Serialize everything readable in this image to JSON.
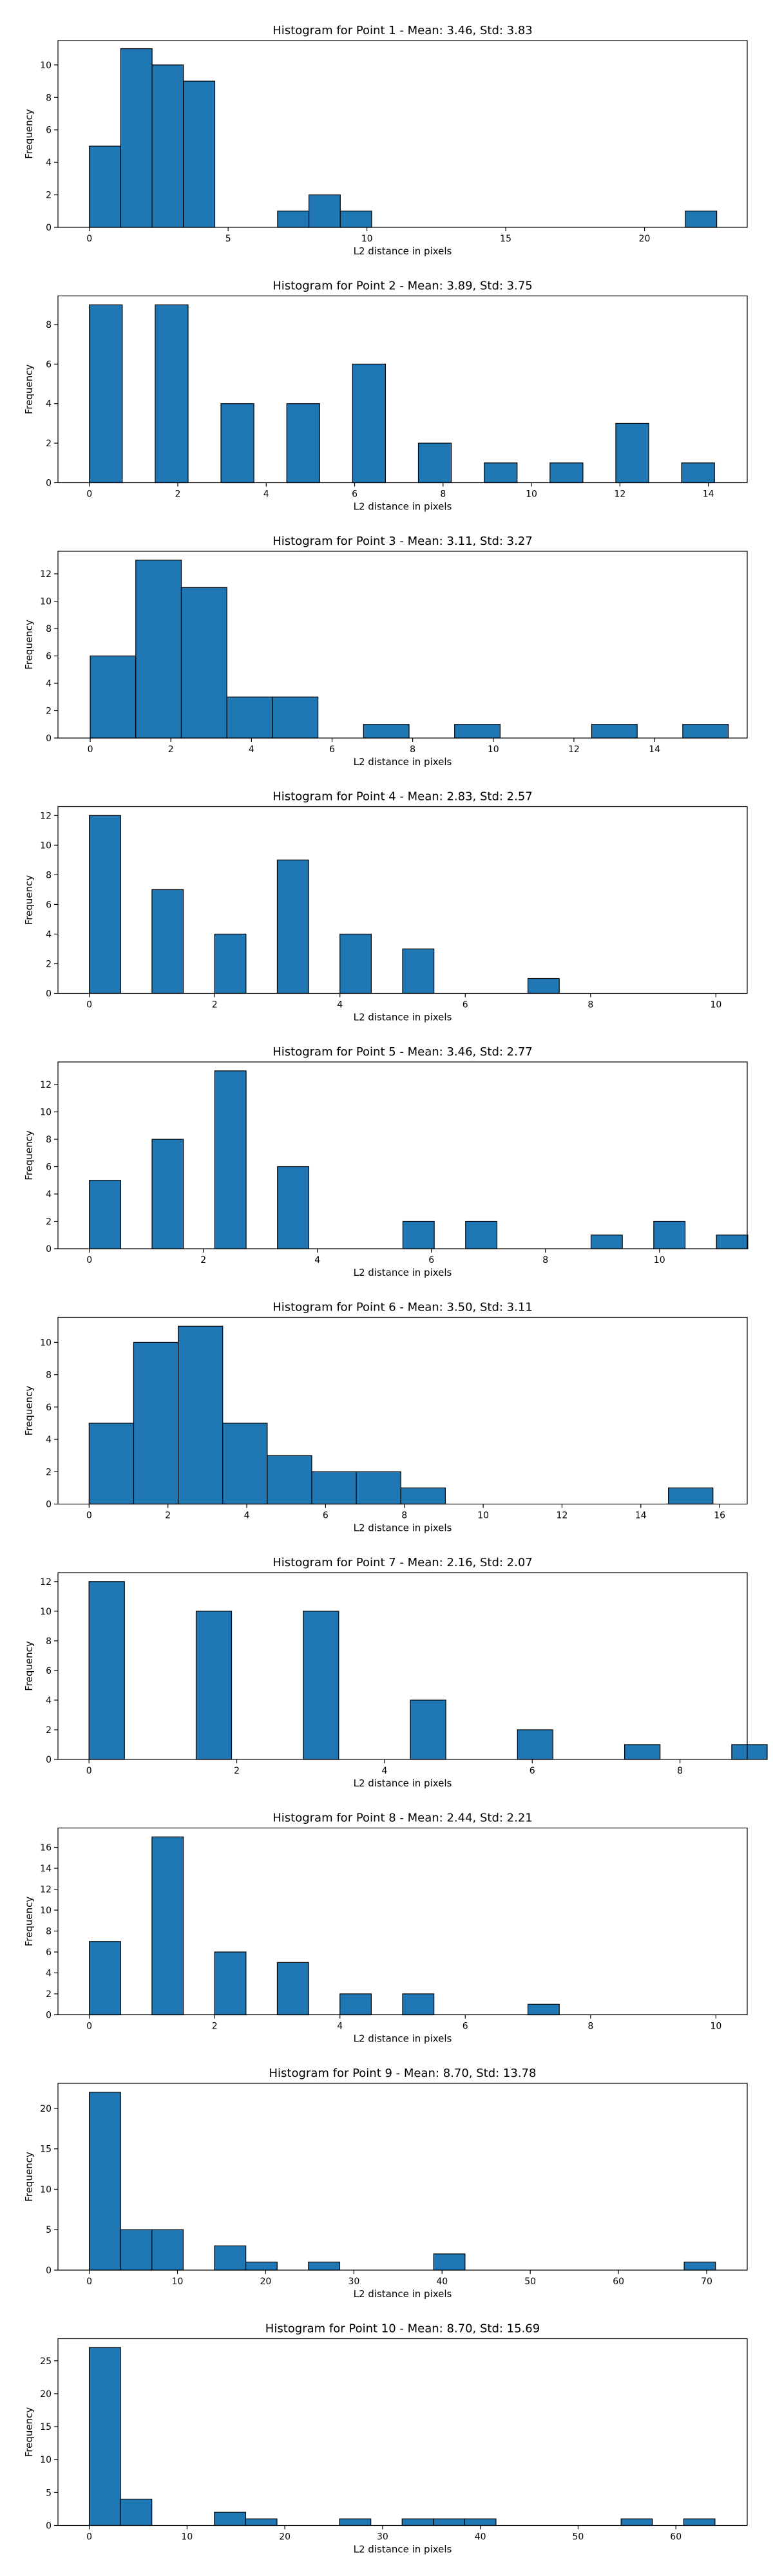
{
  "style": {
    "bar_color": "#1f77b4",
    "edge_color": "#000000",
    "background": "#ffffff"
  },
  "chart_data": [
    {
      "type": "bar",
      "title": "Histogram for Point 1 - Mean: 3.46, Std: 3.83",
      "xlabel": "L2 distance in pixels",
      "ylabel": "Frequency",
      "xlim": [
        -1.13,
        23.7
      ],
      "ylim": [
        0,
        11.5
      ],
      "xticks": [
        0,
        5,
        10,
        15,
        20
      ],
      "yticks": [
        0,
        2,
        4,
        6,
        8,
        10
      ],
      "bars": [
        {
          "x0": 0.0,
          "x1": 1.13,
          "count": 5
        },
        {
          "x0": 1.13,
          "x1": 2.26,
          "count": 11
        },
        {
          "x0": 2.26,
          "x1": 3.39,
          "count": 10
        },
        {
          "x0": 3.39,
          "x1": 4.52,
          "count": 9
        },
        {
          "x0": 6.78,
          "x1": 7.91,
          "count": 1
        },
        {
          "x0": 7.91,
          "x1": 9.04,
          "count": 2
        },
        {
          "x0": 9.04,
          "x1": 10.17,
          "count": 1
        },
        {
          "x0": 21.47,
          "x1": 22.6,
          "count": 1
        }
      ]
    },
    {
      "type": "bar",
      "title": "Histogram for Point 2 - Mean: 3.89, Std: 3.75",
      "xlabel": "L2 distance in pixels",
      "ylabel": "Frequency",
      "xlim": [
        -0.71,
        14.88
      ],
      "ylim": [
        0,
        9.45
      ],
      "xticks": [
        0,
        2,
        4,
        6,
        8,
        10,
        12,
        14
      ],
      "yticks": [
        0,
        2,
        4,
        6,
        8
      ],
      "bars": [
        {
          "x0": 0.0,
          "x1": 1.0,
          "count": 9
        },
        {
          "x0": 2.0,
          "x1": 1.0,
          "count": 9
        },
        {
          "x0": 2.0,
          "x1": 2.99,
          "count": 4
        }
      ]
    },
    {
      "type": "bar",
      "title": "Histogram for Point 3 - Mean: 3.11, Std: 3.27",
      "xlabel": "L2 distance in pixels",
      "ylabel": "Frequency",
      "xlim": [
        -0.8,
        16.3
      ],
      "ylim": [
        0,
        13.65
      ],
      "xticks": [
        0,
        2,
        4,
        6,
        8,
        10,
        12,
        14
      ],
      "yticks": [
        0,
        2,
        4,
        6,
        8,
        10,
        12
      ],
      "bars": [
        {
          "x0": 0.0,
          "x1": 1.13,
          "count": 6
        },
        {
          "x0": 1.13,
          "x1": 2.26,
          "count": 13
        },
        {
          "x0": 2.26,
          "x1": 3.39,
          "count": 11
        },
        {
          "x0": 3.39,
          "x1": 4.52,
          "count": 3
        },
        {
          "x0": 4.52,
          "x1": 5.65,
          "count": 3
        },
        {
          "x0": 6.78,
          "x1": 7.91,
          "count": 1
        },
        {
          "x0": 9.04,
          "x1": 10.17,
          "count": 1
        },
        {
          "x0": 12.44,
          "x1": 13.57,
          "count": 1
        },
        {
          "x0": 14.7,
          "x1": 15.83,
          "count": 1
        }
      ]
    },
    {
      "type": "bar",
      "title": "Histogram for Point 4 - Mean: 2.83, Std: 2.57",
      "xlabel": "L2 distance in pixels",
      "ylabel": "Frequency",
      "xlim": [
        -0.5,
        10.5
      ],
      "ylim": [
        0,
        12.6
      ],
      "xticks": [
        0,
        2,
        4,
        6,
        8,
        10
      ],
      "yticks": [
        0,
        2,
        4,
        6,
        8,
        10,
        12
      ],
      "bars": [
        {
          "x0": 0.0,
          "x1": 0.5,
          "count": 12
        },
        {
          "x0": 1.0,
          "x1": 1.5,
          "count": 7
        },
        {
          "x0": 2.0,
          "x1": 2.5,
          "count": 4
        },
        {
          "x0": 3.0,
          "x1": 3.5,
          "count": 9
        },
        {
          "x0": 4.0,
          "x1": 4.5,
          "count": 4
        },
        {
          "x0": 5.0,
          "x1": 5.5,
          "count": 3
        },
        {
          "x0": 7.0,
          "x1": 7.5,
          "count": 1
        }
      ]
    },
    {
      "type": "bar",
      "title": "Histogram for Point 5 - Mean: 3.46, Std: 2.77",
      "xlabel": "L2 distance in pixels",
      "ylabel": "Frequency",
      "xlim": [
        -0.55,
        11.54
      ],
      "ylim": [
        0,
        13.65
      ],
      "xticks": [
        0,
        2,
        4,
        6,
        8,
        10
      ],
      "yticks": [
        0,
        2,
        4,
        6,
        8,
        10,
        12
      ],
      "bars": [
        {
          "x0": 0.0,
          "x1": 0.55,
          "count": 5
        },
        {
          "x0": 1.1,
          "x1": 1.65,
          "count": 8
        },
        {
          "x0": 2.2,
          "x1": 2.75,
          "count": 13
        },
        {
          "x0": 3.3,
          "x1": 3.85,
          "count": 6
        },
        {
          "x0": 5.5,
          "x1": 6.05,
          "count": 2
        },
        {
          "x0": 6.6,
          "x1": 7.15,
          "count": 2
        },
        {
          "x0": 8.8,
          "x1": 9.35,
          "count": 1
        },
        {
          "x0": 9.9,
          "x1": 10.45,
          "count": 2
        },
        {
          "x0": 11.0,
          "x1": 11.55,
          "count": 1
        }
      ]
    },
    {
      "type": "bar",
      "title": "Histogram for Point 6 - Mean: 3.50, Std: 3.11",
      "xlabel": "L2 distance in pixels",
      "ylabel": "Frequency",
      "xlim": [
        -0.79,
        16.7
      ],
      "ylim": [
        0,
        11.55
      ],
      "xticks": [
        0,
        2,
        4,
        6,
        8,
        10,
        12,
        14,
        16
      ],
      "yticks": [
        0,
        2,
        4,
        6,
        8,
        10
      ],
      "bars": [
        {
          "x0": 0.0,
          "x1": 1.13,
          "count": 5
        },
        {
          "x0": 1.13,
          "x1": 2.26,
          "count": 10
        },
        {
          "x0": 2.26,
          "x1": 3.39,
          "count": 11
        },
        {
          "x0": 3.39,
          "x1": 4.52,
          "count": 5
        },
        {
          "x0": 4.52,
          "x1": 5.65,
          "count": 3
        },
        {
          "x0": 5.65,
          "x1": 6.78,
          "count": 2
        },
        {
          "x0": 6.78,
          "x1": 7.91,
          "count": 2
        },
        {
          "x0": 7.91,
          "x1": 9.04,
          "count": 1
        },
        {
          "x0": 14.7,
          "x1": 15.83,
          "count": 1
        }
      ]
    },
    {
      "type": "bar",
      "title": "Histogram for Point 7 - Mean: 2.16, Std: 2.07",
      "xlabel": "L2 distance in pixels",
      "ylabel": "Frequency",
      "xlim": [
        -0.42,
        8.91
      ],
      "ylim": [
        0,
        12.6
      ],
      "xticks": [
        0,
        2,
        4,
        6,
        8
      ],
      "yticks": [
        0,
        2,
        4,
        6,
        8,
        10,
        12
      ],
      "bars": [
        {
          "x0": 0.0,
          "x1": 0.48,
          "count": 12
        },
        {
          "x0": 1.45,
          "x1": 1.93,
          "count": 10
        },
        {
          "x0": 2.9,
          "x1": 3.38,
          "count": 10
        },
        {
          "x0": 4.35,
          "x1": 4.83,
          "count": 4
        },
        {
          "x0": 5.8,
          "x1": 6.28,
          "count": 2
        },
        {
          "x0": 7.25,
          "x1": 7.73,
          "count": 1
        },
        {
          "x0": 8.7,
          "x1": 9.18,
          "count": 1
        }
      ]
    },
    {
      "type": "bar",
      "title": "Histogram for Point 8 - Mean: 2.44, Std: 2.21",
      "xlabel": "L2 distance in pixels",
      "ylabel": "Frequency",
      "xlim": [
        -0.5,
        10.5
      ],
      "ylim": [
        0,
        17.85
      ],
      "xticks": [
        0,
        2,
        4,
        6,
        8,
        10
      ],
      "yticks": [
        0,
        2,
        4,
        6,
        8,
        10,
        12,
        14,
        16
      ],
      "bars": [
        {
          "x0": 0.0,
          "x1": 0.5,
          "count": 7
        },
        {
          "x0": 1.0,
          "x1": 1.5,
          "count": 17
        },
        {
          "x0": 2.0,
          "x1": 2.5,
          "count": 6
        },
        {
          "x0": 3.0,
          "x1": 3.5,
          "count": 5
        },
        {
          "x0": 4.0,
          "x1": 4.5,
          "count": 2
        },
        {
          "x0": 5.0,
          "x1": 5.5,
          "count": 2
        },
        {
          "x0": 7.0,
          "x1": 7.5,
          "count": 1
        }
      ]
    },
    {
      "type": "bar",
      "title": "Histogram for Point 9 - Mean: 8.70, Std: 13.78",
      "xlabel": "L2 distance in pixels",
      "ylabel": "Frequency",
      "xlim": [
        -3.55,
        74.6
      ],
      "ylim": [
        0,
        23.1
      ],
      "xticks": [
        0,
        10,
        20,
        30,
        40,
        50,
        60,
        70
      ],
      "yticks": [
        0,
        5,
        10,
        15,
        20
      ],
      "bars": [
        {
          "x0": 0.0,
          "x1": 3.55,
          "count": 22
        },
        {
          "x0": 3.55,
          "x1": 7.1,
          "count": 5
        },
        {
          "x0": 7.1,
          "x1": 10.65,
          "count": 5
        },
        {
          "x0": 14.2,
          "x1": 17.75,
          "count": 3
        },
        {
          "x0": 17.75,
          "x1": 21.3,
          "count": 1
        },
        {
          "x0": 24.85,
          "x1": 28.4,
          "count": 1
        },
        {
          "x0": 39.05,
          "x1": 42.6,
          "count": 2
        },
        {
          "x0": 67.45,
          "x1": 71.0,
          "count": 1
        }
      ]
    },
    {
      "type": "bar",
      "title": "Histogram for Point 10 - Mean: 8.70, Std: 15.69",
      "xlabel": "L2 distance in pixels",
      "ylabel": "Frequency",
      "xlim": [
        -3.2,
        67.3
      ],
      "ylim": [
        0,
        28.35
      ],
      "xticks": [
        0,
        10,
        20,
        30,
        40,
        50,
        60
      ],
      "yticks": [
        0,
        5,
        10,
        15,
        20,
        25
      ],
      "bars": [
        {
          "x0": 0.0,
          "x1": 3.2,
          "count": 27
        },
        {
          "x0": 3.2,
          "x1": 6.4,
          "count": 4
        },
        {
          "x0": 12.8,
          "x1": 16.0,
          "count": 2
        },
        {
          "x0": 16.0,
          "x1": 19.2,
          "count": 1
        },
        {
          "x0": 25.6,
          "x1": 28.8,
          "count": 1
        },
        {
          "x0": 32.0,
          "x1": 35.2,
          "count": 1
        },
        {
          "x0": 35.2,
          "x1": 38.4,
          "count": 1
        },
        {
          "x0": 38.4,
          "x1": 41.6,
          "count": 1
        },
        {
          "x0": 54.4,
          "x1": 57.6,
          "count": 1
        },
        {
          "x0": 60.8,
          "x1": 64.0,
          "count": 1
        }
      ]
    }
  ]
}
